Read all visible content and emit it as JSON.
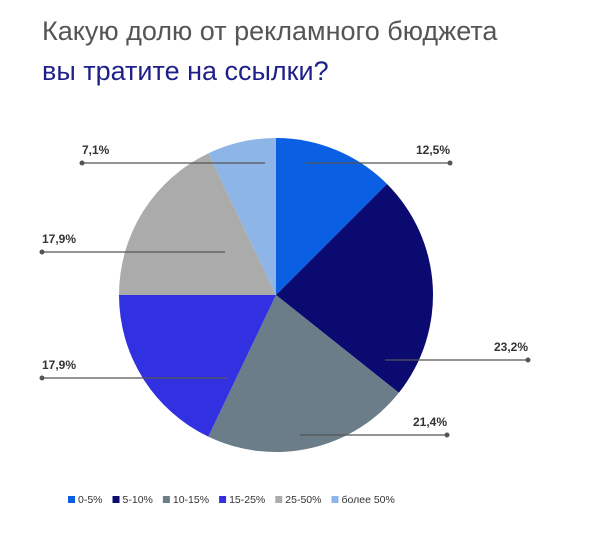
{
  "chart_data": {
    "type": "pie",
    "title": "Какую долю от рекламного бюджета",
    "subtitle": "вы тратите на ссылки?",
    "categories": [
      "0-5%",
      "5-10%",
      "10-15%",
      "15-25%",
      "25-50%",
      "более 50%"
    ],
    "values": [
      12.5,
      23.2,
      21.4,
      17.9,
      17.9,
      7.1
    ],
    "value_labels": [
      "12,5%",
      "23,2%",
      "21,4%",
      "17,9%",
      "17,9%",
      "7,1%"
    ],
    "colors": [
      "#0b5fe3",
      "#0b0a70",
      "#6b7d88",
      "#3131e2",
      "#ababab",
      "#8db5e8"
    ]
  }
}
